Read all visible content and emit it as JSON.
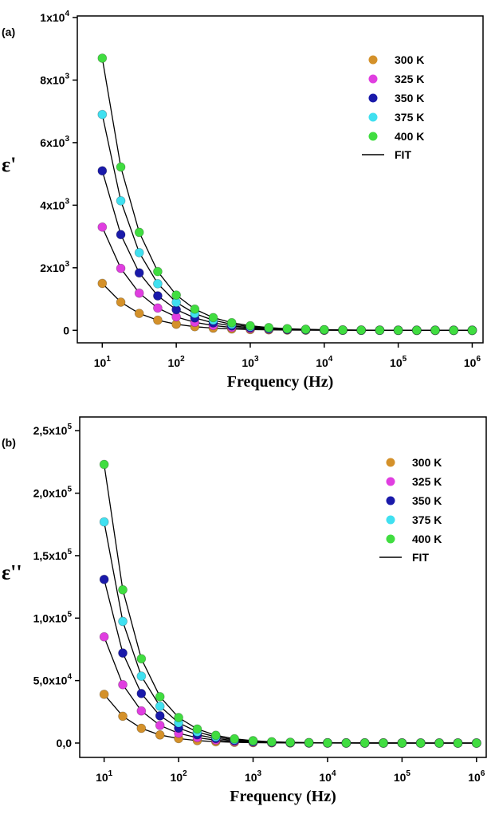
{
  "chart_data": [
    {
      "type": "scatter",
      "panel": "(a)",
      "x_label": "Frequency (Hz)",
      "y_label": "ε'",
      "log_x": true,
      "xlim": [
        4.6,
        1400000
      ],
      "ylim": [
        -400,
        10050
      ],
      "xticks": [
        {
          "value": 10,
          "label": "10",
          "exponent": "1"
        },
        {
          "value": 100,
          "label": "10",
          "exponent": "2"
        },
        {
          "value": 1000,
          "label": "10",
          "exponent": "3"
        },
        {
          "value": 10000,
          "label": "10",
          "exponent": "4"
        },
        {
          "value": 100000,
          "label": "10",
          "exponent": "5"
        },
        {
          "value": 1000000,
          "label": "10",
          "exponent": "6"
        }
      ],
      "yticks": [
        0,
        {
          "value": 2000,
          "label": "2x10",
          "exponent": "3"
        },
        {
          "value": 4000,
          "label": "4x10",
          "exponent": "3"
        },
        {
          "value": 6000,
          "label": "6x10",
          "exponent": "3"
        },
        {
          "value": 8000,
          "label": "8x10",
          "exponent": "3"
        },
        {
          "value": 10000,
          "label": "1x10",
          "exponent": "4"
        }
      ],
      "x": [
        10,
        17.8,
        31.6,
        56.2,
        100,
        178,
        316,
        562,
        1000,
        1780,
        3160,
        5620,
        10000,
        17800,
        31600,
        56200,
        100000,
        178000,
        316000,
        562000,
        1000000
      ],
      "series": [
        {
          "name": "300 K",
          "color": "#d4912a",
          "values": [
            1500,
            900,
            540,
            324,
            194,
            117,
            70,
            42,
            25,
            15,
            9,
            5,
            3,
            2,
            1,
            1,
            0,
            0,
            0,
            0,
            0
          ]
        },
        {
          "name": "325 K",
          "color": "#e03ee0",
          "values": [
            3300,
            1980,
            1188,
            713,
            428,
            257,
            154,
            92,
            55,
            33,
            20,
            12,
            7,
            4,
            3,
            2,
            1,
            1,
            0,
            0,
            0
          ]
        },
        {
          "name": "350 K",
          "color": "#1a1aaa",
          "values": [
            5100,
            3060,
            1836,
            1102,
            661,
            397,
            238,
            143,
            86,
            51,
            31,
            18,
            11,
            7,
            4,
            2,
            1,
            1,
            1,
            0,
            0
          ]
        },
        {
          "name": "375 K",
          "color": "#40e0f0",
          "values": [
            6900,
            4140,
            2484,
            1490,
            894,
            537,
            322,
            193,
            116,
            70,
            42,
            25,
            15,
            9,
            5,
            3,
            2,
            1,
            1,
            0,
            0
          ]
        },
        {
          "name": "400 K",
          "color": "#40dd40",
          "values": [
            8700,
            5220,
            3132,
            1879,
            1127,
            677,
            406,
            243,
            146,
            88,
            53,
            32,
            19,
            11,
            7,
            4,
            2,
            1,
            1,
            0,
            0
          ]
        }
      ],
      "fit": {
        "name": "FIT",
        "color": "#000000"
      }
    },
    {
      "type": "scatter",
      "panel": "(b)",
      "x_label": "Frequency (Hz)",
      "y_label": "ε''",
      "log_x": true,
      "xlim": [
        4.7,
        1350000
      ],
      "ylim": [
        -11500,
        261000
      ],
      "xticks": [
        {
          "value": 10,
          "label": "10",
          "exponent": "1"
        },
        {
          "value": 100,
          "label": "10",
          "exponent": "2"
        },
        {
          "value": 1000,
          "label": "10",
          "exponent": "3"
        },
        {
          "value": 10000,
          "label": "10",
          "exponent": "4"
        },
        {
          "value": 100000,
          "label": "10",
          "exponent": "5"
        },
        {
          "value": 1000000,
          "label": "10",
          "exponent": "6"
        }
      ],
      "yticks": [
        {
          "value": 0,
          "label": "0,0"
        },
        {
          "value": 50000,
          "label": "5,0x10",
          "exponent": "4"
        },
        {
          "value": 100000,
          "label": "1,0x10",
          "exponent": "5"
        },
        {
          "value": 150000,
          "label": "1,5x10",
          "exponent": "5"
        },
        {
          "value": 200000,
          "label": "2,0x10",
          "exponent": "5"
        },
        {
          "value": 250000,
          "label": "2,5x10",
          "exponent": "5"
        }
      ],
      "x": [
        10,
        17.8,
        31.6,
        56.2,
        100,
        178,
        316,
        562,
        1000,
        1780,
        3160,
        5620,
        10000,
        17800,
        31600,
        56200,
        100000,
        178000,
        316000,
        562000,
        1000000
      ],
      "series": [
        {
          "name": "300 K",
          "color": "#d4912a",
          "values": [
            39000,
            21450,
            11800,
            6490,
            3570,
            1960,
            1080,
            594,
            327,
            180,
            99,
            54,
            30,
            16,
            9,
            5,
            3,
            2,
            1,
            0,
            0
          ]
        },
        {
          "name": "325 K",
          "color": "#e03ee0",
          "values": [
            85000,
            46750,
            25700,
            14140,
            7780,
            4280,
            2350,
            1290,
            712,
            392,
            215,
            118,
            65,
            36,
            20,
            11,
            6,
            3,
            2,
            1,
            0
          ]
        },
        {
          "name": "350 K",
          "color": "#1a1aaa",
          "values": [
            131000,
            72050,
            39630,
            21800,
            11990,
            6590,
            3630,
            1990,
            1100,
            603,
            332,
            183,
            100,
            55,
            30,
            17,
            9,
            5,
            3,
            2,
            1
          ]
        },
        {
          "name": "375 K",
          "color": "#40e0f0",
          "values": [
            177000,
            97350,
            53540,
            29450,
            16200,
            8910,
            4900,
            2690,
            1480,
            815,
            448,
            246,
            136,
            75,
            41,
            23,
            12,
            7,
            4,
            2,
            1
          ]
        },
        {
          "name": "400 K",
          "color": "#40dd40",
          "values": [
            223000,
            122650,
            67460,
            37100,
            20410,
            11220,
            6170,
            3400,
            1870,
            1020,
            565,
            311,
            171,
            94,
            52,
            28,
            16,
            9,
            5,
            3,
            1
          ]
        }
      ],
      "fit": {
        "name": "FIT",
        "color": "#000000"
      }
    }
  ]
}
